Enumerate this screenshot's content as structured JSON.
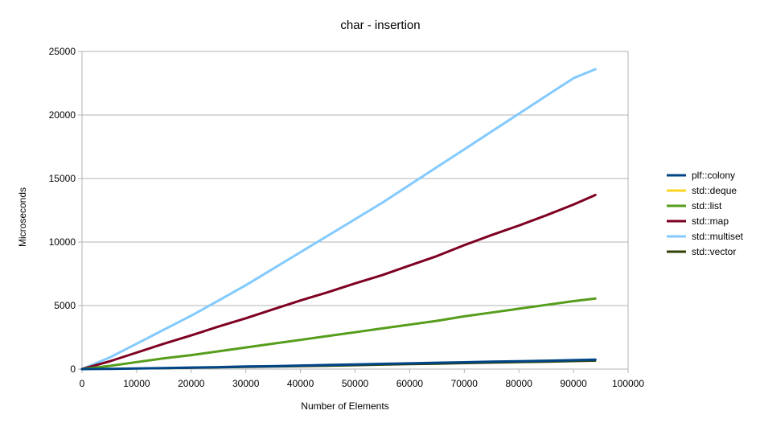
{
  "chart_data": {
    "type": "line",
    "title": "char - insertion",
    "xlabel": "Number of Elements",
    "ylabel": "Microseconds",
    "xlim": [
      0,
      100000
    ],
    "ylim": [
      0,
      25000
    ],
    "x_ticks": [
      0,
      10000,
      20000,
      30000,
      40000,
      50000,
      60000,
      70000,
      80000,
      90000,
      100000
    ],
    "y_ticks": [
      0,
      5000,
      10000,
      15000,
      20000,
      25000
    ],
    "x_tick_labels": [
      "0",
      "10000",
      "20000",
      "30000",
      "40000",
      "50000",
      "60000",
      "70000",
      "80000",
      "90000",
      "100000"
    ],
    "y_tick_labels": [
      "0",
      "5000",
      "10000",
      "15000",
      "20000",
      "25000"
    ],
    "grid": "horizontal",
    "legend_position": "right",
    "series": [
      {
        "name": "plf::colony",
        "color": "#004586",
        "width": 3,
        "points": [
          [
            0,
            0
          ],
          [
            5000,
            20
          ],
          [
            10000,
            50
          ],
          [
            15000,
            80
          ],
          [
            20000,
            120
          ],
          [
            25000,
            150
          ],
          [
            30000,
            200
          ],
          [
            35000,
            230
          ],
          [
            40000,
            280
          ],
          [
            45000,
            320
          ],
          [
            50000,
            370
          ],
          [
            55000,
            410
          ],
          [
            60000,
            450
          ],
          [
            65000,
            500
          ],
          [
            70000,
            540
          ],
          [
            75000,
            580
          ],
          [
            80000,
            620
          ],
          [
            85000,
            660
          ],
          [
            90000,
            700
          ],
          [
            94000,
            740
          ]
        ]
      },
      {
        "name": "std::deque",
        "color": "#ffd320",
        "width": 2,
        "points": [
          [
            0,
            0
          ],
          [
            5000,
            15
          ],
          [
            10000,
            40
          ],
          [
            15000,
            70
          ],
          [
            20000,
            100
          ],
          [
            25000,
            130
          ],
          [
            30000,
            170
          ],
          [
            35000,
            200
          ],
          [
            40000,
            240
          ],
          [
            45000,
            270
          ],
          [
            50000,
            310
          ],
          [
            55000,
            350
          ],
          [
            60000,
            390
          ],
          [
            65000,
            430
          ],
          [
            70000,
            460
          ],
          [
            75000,
            500
          ],
          [
            80000,
            540
          ],
          [
            85000,
            580
          ],
          [
            90000,
            620
          ],
          [
            94000,
            650
          ]
        ]
      },
      {
        "name": "std::list",
        "color": "#579d1c",
        "width": 3,
        "points": [
          [
            0,
            0
          ],
          [
            5000,
            250
          ],
          [
            10000,
            550
          ],
          [
            15000,
            850
          ],
          [
            20000,
            1100
          ],
          [
            25000,
            1400
          ],
          [
            30000,
            1700
          ],
          [
            35000,
            2000
          ],
          [
            40000,
            2300
          ],
          [
            45000,
            2600
          ],
          [
            50000,
            2900
          ],
          [
            55000,
            3200
          ],
          [
            60000,
            3500
          ],
          [
            65000,
            3800
          ],
          [
            70000,
            4150
          ],
          [
            75000,
            4450
          ],
          [
            80000,
            4750
          ],
          [
            85000,
            5050
          ],
          [
            90000,
            5350
          ],
          [
            94000,
            5550
          ]
        ]
      },
      {
        "name": "std::map",
        "color": "#7e0021",
        "width": 3,
        "points": [
          [
            0,
            0
          ],
          [
            5000,
            600
          ],
          [
            10000,
            1300
          ],
          [
            15000,
            2000
          ],
          [
            20000,
            2650
          ],
          [
            25000,
            3350
          ],
          [
            30000,
            4000
          ],
          [
            35000,
            4700
          ],
          [
            40000,
            5400
          ],
          [
            45000,
            6050
          ],
          [
            50000,
            6750
          ],
          [
            55000,
            7400
          ],
          [
            60000,
            8150
          ],
          [
            65000,
            8900
          ],
          [
            70000,
            9750
          ],
          [
            75000,
            10550
          ],
          [
            80000,
            11300
          ],
          [
            85000,
            12100
          ],
          [
            90000,
            12950
          ],
          [
            94000,
            13700
          ]
        ]
      },
      {
        "name": "std::multiset",
        "color": "#83caff",
        "width": 3,
        "points": [
          [
            0,
            0
          ],
          [
            5000,
            900
          ],
          [
            10000,
            2000
          ],
          [
            15000,
            3100
          ],
          [
            20000,
            4200
          ],
          [
            25000,
            5400
          ],
          [
            30000,
            6600
          ],
          [
            35000,
            7900
          ],
          [
            40000,
            9200
          ],
          [
            45000,
            10500
          ],
          [
            50000,
            11800
          ],
          [
            55000,
            13100
          ],
          [
            60000,
            14500
          ],
          [
            65000,
            15900
          ],
          [
            70000,
            17300
          ],
          [
            75000,
            18700
          ],
          [
            80000,
            20100
          ],
          [
            85000,
            21500
          ],
          [
            90000,
            22900
          ],
          [
            94000,
            23600
          ]
        ]
      },
      {
        "name": "std::vector",
        "color": "#314004",
        "width": 2,
        "points": [
          [
            0,
            0
          ],
          [
            5000,
            10
          ],
          [
            10000,
            30
          ],
          [
            15000,
            50
          ],
          [
            20000,
            80
          ],
          [
            25000,
            110
          ],
          [
            30000,
            140
          ],
          [
            35000,
            170
          ],
          [
            40000,
            210
          ],
          [
            45000,
            240
          ],
          [
            50000,
            280
          ],
          [
            55000,
            320
          ],
          [
            60000,
            360
          ],
          [
            65000,
            400
          ],
          [
            70000,
            440
          ],
          [
            75000,
            480
          ],
          [
            80000,
            520
          ],
          [
            85000,
            560
          ],
          [
            90000,
            600
          ],
          [
            94000,
            630
          ]
        ]
      }
    ]
  }
}
